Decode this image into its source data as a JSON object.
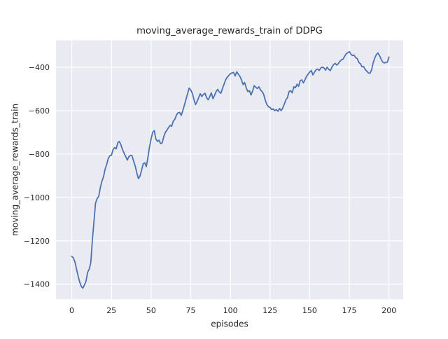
{
  "colors": {
    "figure_background": "#ffffff",
    "plot_background": "#eaeaf2",
    "grid": "#ffffff",
    "line": "#4c72b0",
    "text": "#262626"
  },
  "chart_data": {
    "type": "line",
    "title": "moving_average_rewards_train of DDPG",
    "xlabel": "episodes",
    "ylabel": "moving_average_rewards_train",
    "grid": true,
    "legend": false,
    "xlim": [
      -9.95,
      208.95
    ],
    "ylim": [
      -1469,
      -276
    ],
    "x_tick_values": [
      0,
      25,
      50,
      75,
      100,
      125,
      150,
      175,
      200
    ],
    "x_tick_labels": [
      "0",
      "25",
      "50",
      "75",
      "100",
      "125",
      "150",
      "175",
      "200"
    ],
    "y_tick_values": [
      -400,
      -600,
      -800,
      -1000,
      -1200,
      -1400
    ],
    "y_tick_labels": [
      "−400",
      "−600",
      "−800",
      "−1000",
      "−1200",
      "−1400"
    ],
    "x_start": 0,
    "x_step": 1,
    "series": [
      {
        "name": "moving_average_rewards_train",
        "color": "#4c72b0",
        "values": [
          -1272,
          -1278,
          -1298,
          -1330,
          -1362,
          -1390,
          -1410,
          -1418,
          -1403,
          -1385,
          -1345,
          -1330,
          -1300,
          -1195,
          -1110,
          -1025,
          -1005,
          -995,
          -955,
          -925,
          -905,
          -870,
          -848,
          -820,
          -808,
          -806,
          -780,
          -770,
          -776,
          -748,
          -742,
          -758,
          -780,
          -796,
          -812,
          -828,
          -812,
          -806,
          -808,
          -833,
          -855,
          -887,
          -913,
          -902,
          -875,
          -845,
          -840,
          -858,
          -815,
          -768,
          -730,
          -700,
          -692,
          -730,
          -742,
          -736,
          -752,
          -748,
          -720,
          -700,
          -690,
          -678,
          -668,
          -672,
          -648,
          -640,
          -620,
          -610,
          -608,
          -622,
          -600,
          -575,
          -548,
          -522,
          -496,
          -505,
          -520,
          -548,
          -572,
          -558,
          -540,
          -522,
          -535,
          -525,
          -520,
          -540,
          -550,
          -535,
          -518,
          -545,
          -530,
          -512,
          -502,
          -514,
          -520,
          -498,
          -478,
          -458,
          -446,
          -438,
          -430,
          -426,
          -424,
          -440,
          -421,
          -432,
          -442,
          -458,
          -480,
          -470,
          -495,
          -512,
          -508,
          -528,
          -510,
          -485,
          -492,
          -498,
          -490,
          -505,
          -512,
          -525,
          -552,
          -572,
          -582,
          -585,
          -595,
          -592,
          -600,
          -595,
          -603,
          -590,
          -600,
          -588,
          -570,
          -550,
          -540,
          -512,
          -508,
          -518,
          -490,
          -495,
          -478,
          -488,
          -462,
          -458,
          -472,
          -458,
          -442,
          -432,
          -422,
          -415,
          -435,
          -423,
          -412,
          -408,
          -415,
          -403,
          -400,
          -403,
          -413,
          -400,
          -410,
          -416,
          -400,
          -388,
          -382,
          -390,
          -384,
          -373,
          -366,
          -363,
          -350,
          -338,
          -333,
          -328,
          -340,
          -346,
          -344,
          -356,
          -360,
          -378,
          -384,
          -398,
          -397,
          -410,
          -418,
          -426,
          -428,
          -413,
          -380,
          -358,
          -342,
          -334,
          -346,
          -362,
          -376,
          -380,
          -378,
          -376,
          -353
        ]
      }
    ]
  }
}
